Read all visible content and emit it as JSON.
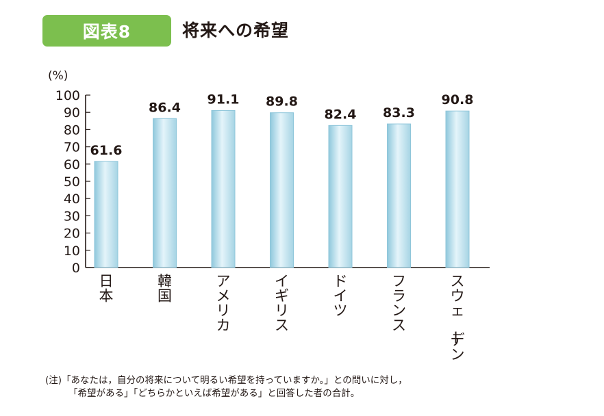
{
  "figure": {
    "badge": "図表8",
    "title": "将来への希望"
  },
  "chart_data": {
    "type": "bar",
    "unit_label": "(%)",
    "categories": [
      "日本",
      "韓国",
      "アメリカ",
      "イギリス",
      "ドイツ",
      "フランス",
      "スウェーデン"
    ],
    "values": [
      61.6,
      86.4,
      91.1,
      89.8,
      82.4,
      83.3,
      90.8
    ],
    "value_labels": [
      "61.6",
      "86.4",
      "91.1",
      "89.8",
      "82.4",
      "83.3",
      "90.8"
    ],
    "ylim": [
      0,
      100
    ],
    "yticks": [
      0,
      10,
      20,
      30,
      40,
      50,
      60,
      70,
      80,
      90,
      100
    ],
    "grid": false,
    "bar_color": "#bfe2ee",
    "bar_edge_color": "#8fc6da"
  },
  "notes": {
    "line1": "(注)「あなたは，自分の将来について明るい希望を持っていますか。」との問いに対し，",
    "line2": "「希望がある」「どちらかといえば希望がある」と回答した者の合計。"
  }
}
